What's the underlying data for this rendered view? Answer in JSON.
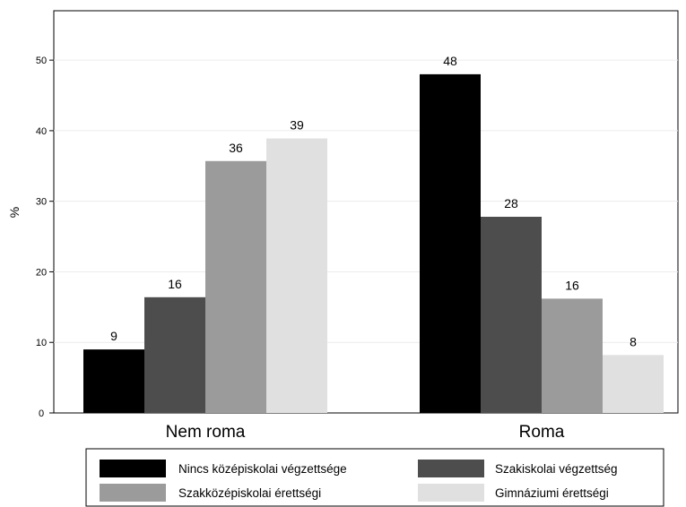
{
  "chart_data": {
    "type": "bar",
    "categories": [
      "Nem roma",
      "Roma"
    ],
    "ylabel": "%",
    "ylim": [
      0,
      57
    ],
    "yticks": [
      0,
      10,
      20,
      30,
      40,
      50
    ],
    "grid": true,
    "legend_position": "bottom",
    "series": [
      {
        "name": "Nincs középiskolai végzettsége",
        "values": [
          9,
          48
        ],
        "labels": [
          "9",
          "48"
        ],
        "color": "#000000"
      },
      {
        "name": "Szakiskolai végzettség",
        "values": [
          16.4,
          27.8
        ],
        "labels": [
          "16",
          "28"
        ],
        "color": "#4d4d4d"
      },
      {
        "name": "Szakközépiskolai érettségi",
        "values": [
          35.7,
          16.2
        ],
        "labels": [
          "36",
          "16"
        ],
        "color": "#9b9b9b"
      },
      {
        "name": "Gimnáziumi érettségi",
        "values": [
          38.9,
          8.2
        ],
        "labels": [
          "39",
          "8"
        ],
        "color": "#e0e0e0"
      }
    ]
  }
}
